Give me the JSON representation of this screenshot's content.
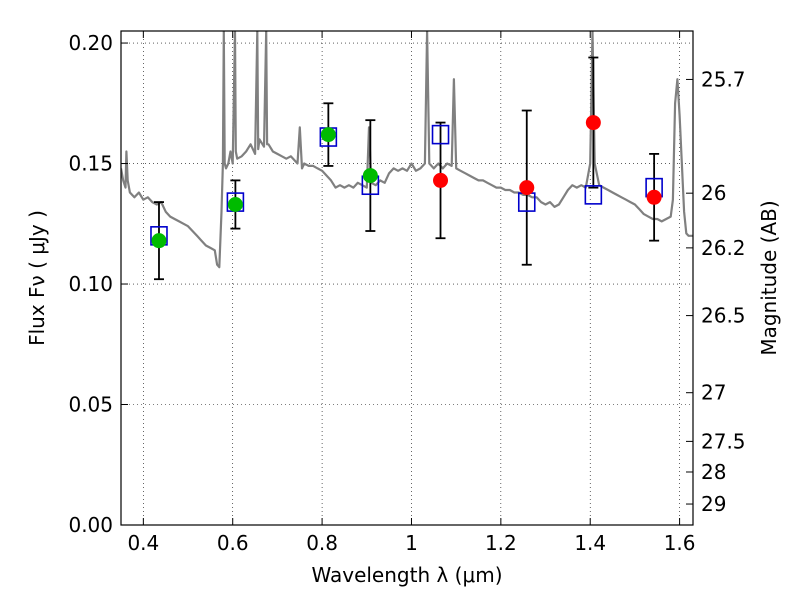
{
  "chart_data": {
    "type": "scatter",
    "title": "",
    "xlabel": "Wavelength  λ (μm)",
    "ylabel": "Flux  Fν  ( μJy )",
    "ylabel_right": "Magnitude (AB)",
    "xlim": [
      0.35,
      1.63
    ],
    "ylim": [
      0.0,
      0.205
    ],
    "grid": true,
    "x_ticks": [
      {
        "value": 0.4,
        "label": "0.4"
      },
      {
        "value": 0.6,
        "label": "0.6"
      },
      {
        "value": 0.8,
        "label": "0.8"
      },
      {
        "value": 1.0,
        "label": "1"
      },
      {
        "value": 1.2,
        "label": "1.2"
      },
      {
        "value": 1.4,
        "label": "1.4"
      },
      {
        "value": 1.6,
        "label": "1.6"
      }
    ],
    "y_ticks": [
      {
        "value": 0.0,
        "label": "0.00"
      },
      {
        "value": 0.05,
        "label": "0.05"
      },
      {
        "value": 0.1,
        "label": "0.10"
      },
      {
        "value": 0.15,
        "label": "0.15"
      },
      {
        "value": 0.2,
        "label": "0.20"
      }
    ],
    "right_ticks": [
      {
        "flux": 0.1849,
        "label": "25.7"
      },
      {
        "flux": 0.1377,
        "label": "26"
      },
      {
        "flux": 0.115,
        "label": "26.2"
      },
      {
        "flux": 0.0869,
        "label": "26.5"
      },
      {
        "flux": 0.0549,
        "label": "27"
      },
      {
        "flux": 0.0347,
        "label": "27.5"
      },
      {
        "flux": 0.022,
        "label": "28"
      },
      {
        "flux": 0.0087,
        "label": "29"
      }
    ],
    "colors": {
      "model": "#808080",
      "observed": "#00bb00",
      "dropout": "#ff0000",
      "model_photometry": "#0000cc",
      "errorbar": "#000000"
    },
    "model_spectrum": [
      [
        0.35,
        0.148
      ],
      [
        0.355,
        0.143
      ],
      [
        0.36,
        0.14
      ],
      [
        0.362,
        0.155
      ],
      [
        0.365,
        0.143
      ],
      [
        0.37,
        0.138
      ],
      [
        0.38,
        0.136
      ],
      [
        0.39,
        0.138
      ],
      [
        0.4,
        0.135
      ],
      [
        0.41,
        0.136
      ],
      [
        0.42,
        0.134
      ],
      [
        0.43,
        0.133
      ],
      [
        0.44,
        0.134
      ],
      [
        0.45,
        0.13
      ],
      [
        0.46,
        0.128
      ],
      [
        0.47,
        0.127
      ],
      [
        0.48,
        0.126
      ],
      [
        0.49,
        0.125
      ],
      [
        0.5,
        0.124
      ],
      [
        0.51,
        0.122
      ],
      [
        0.52,
        0.12
      ],
      [
        0.53,
        0.118
      ],
      [
        0.54,
        0.116
      ],
      [
        0.55,
        0.115
      ],
      [
        0.56,
        0.114
      ],
      [
        0.565,
        0.108
      ],
      [
        0.57,
        0.107
      ],
      [
        0.575,
        0.13
      ],
      [
        0.578,
        0.15
      ],
      [
        0.58,
        0.205
      ],
      [
        0.582,
        0.15
      ],
      [
        0.585,
        0.148
      ],
      [
        0.59,
        0.15
      ],
      [
        0.595,
        0.155
      ],
      [
        0.6,
        0.15
      ],
      [
        0.605,
        0.205
      ],
      [
        0.607,
        0.155
      ],
      [
        0.61,
        0.152
      ],
      [
        0.62,
        0.153
      ],
      [
        0.63,
        0.155
      ],
      [
        0.64,
        0.158
      ],
      [
        0.65,
        0.154
      ],
      [
        0.655,
        0.205
      ],
      [
        0.657,
        0.156
      ],
      [
        0.66,
        0.16
      ],
      [
        0.67,
        0.157
      ],
      [
        0.675,
        0.205
      ],
      [
        0.677,
        0.158
      ],
      [
        0.68,
        0.158
      ],
      [
        0.69,
        0.155
      ],
      [
        0.7,
        0.154
      ],
      [
        0.71,
        0.153
      ],
      [
        0.72,
        0.152
      ],
      [
        0.73,
        0.153
      ],
      [
        0.74,
        0.151
      ],
      [
        0.745,
        0.15
      ],
      [
        0.75,
        0.165
      ],
      [
        0.755,
        0.148
      ],
      [
        0.76,
        0.15
      ],
      [
        0.77,
        0.149
      ],
      [
        0.78,
        0.149
      ],
      [
        0.79,
        0.148
      ],
      [
        0.8,
        0.147
      ],
      [
        0.81,
        0.145
      ],
      [
        0.82,
        0.143
      ],
      [
        0.83,
        0.14
      ],
      [
        0.84,
        0.141
      ],
      [
        0.85,
        0.14
      ],
      [
        0.86,
        0.141
      ],
      [
        0.87,
        0.14
      ],
      [
        0.88,
        0.142
      ],
      [
        0.89,
        0.141
      ],
      [
        0.9,
        0.14
      ],
      [
        0.905,
        0.165
      ],
      [
        0.91,
        0.142
      ],
      [
        0.92,
        0.141
      ],
      [
        0.93,
        0.143
      ],
      [
        0.94,
        0.142
      ],
      [
        0.95,
        0.146
      ],
      [
        0.96,
        0.148
      ],
      [
        0.97,
        0.147
      ],
      [
        0.98,
        0.148
      ],
      [
        0.99,
        0.147
      ],
      [
        1.0,
        0.15
      ],
      [
        1.01,
        0.147
      ],
      [
        1.02,
        0.148
      ],
      [
        1.03,
        0.15
      ],
      [
        1.035,
        0.205
      ],
      [
        1.04,
        0.15
      ],
      [
        1.05,
        0.148
      ],
      [
        1.06,
        0.15
      ],
      [
        1.07,
        0.148
      ],
      [
        1.08,
        0.15
      ],
      [
        1.09,
        0.149
      ],
      [
        1.095,
        0.185
      ],
      [
        1.1,
        0.148
      ],
      [
        1.11,
        0.147
      ],
      [
        1.12,
        0.146
      ],
      [
        1.13,
        0.145
      ],
      [
        1.14,
        0.144
      ],
      [
        1.15,
        0.143
      ],
      [
        1.16,
        0.143
      ],
      [
        1.17,
        0.142
      ],
      [
        1.18,
        0.141
      ],
      [
        1.19,
        0.14
      ],
      [
        1.2,
        0.14
      ],
      [
        1.21,
        0.139
      ],
      [
        1.22,
        0.139
      ],
      [
        1.23,
        0.138
      ],
      [
        1.24,
        0.138
      ],
      [
        1.25,
        0.137
      ],
      [
        1.26,
        0.137
      ],
      [
        1.27,
        0.136
      ],
      [
        1.28,
        0.136
      ],
      [
        1.29,
        0.134
      ],
      [
        1.3,
        0.133
      ],
      [
        1.31,
        0.134
      ],
      [
        1.32,
        0.132
      ],
      [
        1.33,
        0.133
      ],
      [
        1.34,
        0.136
      ],
      [
        1.35,
        0.139
      ],
      [
        1.36,
        0.141
      ],
      [
        1.37,
        0.14
      ],
      [
        1.38,
        0.141
      ],
      [
        1.39,
        0.14
      ],
      [
        1.4,
        0.15
      ],
      [
        1.405,
        0.205
      ],
      [
        1.41,
        0.15
      ],
      [
        1.42,
        0.141
      ],
      [
        1.43,
        0.14
      ],
      [
        1.44,
        0.139
      ],
      [
        1.45,
        0.138
      ],
      [
        1.46,
        0.137
      ],
      [
        1.47,
        0.136
      ],
      [
        1.48,
        0.135
      ],
      [
        1.49,
        0.134
      ],
      [
        1.5,
        0.133
      ],
      [
        1.51,
        0.131
      ],
      [
        1.52,
        0.129
      ],
      [
        1.53,
        0.128
      ],
      [
        1.54,
        0.127
      ],
      [
        1.55,
        0.127
      ],
      [
        1.56,
        0.126
      ],
      [
        1.57,
        0.127
      ],
      [
        1.58,
        0.128
      ],
      [
        1.585,
        0.135
      ],
      [
        1.59,
        0.175
      ],
      [
        1.595,
        0.185
      ],
      [
        1.6,
        0.17
      ],
      [
        1.61,
        0.13
      ],
      [
        1.615,
        0.121
      ],
      [
        1.62,
        0.12
      ],
      [
        1.63,
        0.12
      ]
    ],
    "observed_points": [
      {
        "x": 0.435,
        "y": 0.118,
        "err": 0.016
      },
      {
        "x": 0.606,
        "y": 0.133,
        "err": 0.01
      },
      {
        "x": 0.814,
        "y": 0.162,
        "err": 0.013
      },
      {
        "x": 0.908,
        "y": 0.145,
        "err": 0.023
      }
    ],
    "dropout_points": [
      {
        "x": 1.065,
        "y": 0.143,
        "err": 0.024
      },
      {
        "x": 1.258,
        "y": 0.14,
        "err": 0.032
      },
      {
        "x": 1.407,
        "y": 0.167,
        "err": 0.027
      },
      {
        "x": 1.543,
        "y": 0.136,
        "err": 0.018
      }
    ],
    "model_photometry": [
      {
        "x": 0.435,
        "y": 0.12
      },
      {
        "x": 0.606,
        "y": 0.134
      },
      {
        "x": 0.814,
        "y": 0.161
      },
      {
        "x": 0.908,
        "y": 0.141
      },
      {
        "x": 1.065,
        "y": 0.162
      },
      {
        "x": 1.258,
        "y": 0.134
      },
      {
        "x": 1.407,
        "y": 0.137
      },
      {
        "x": 1.543,
        "y": 0.14
      }
    ]
  }
}
